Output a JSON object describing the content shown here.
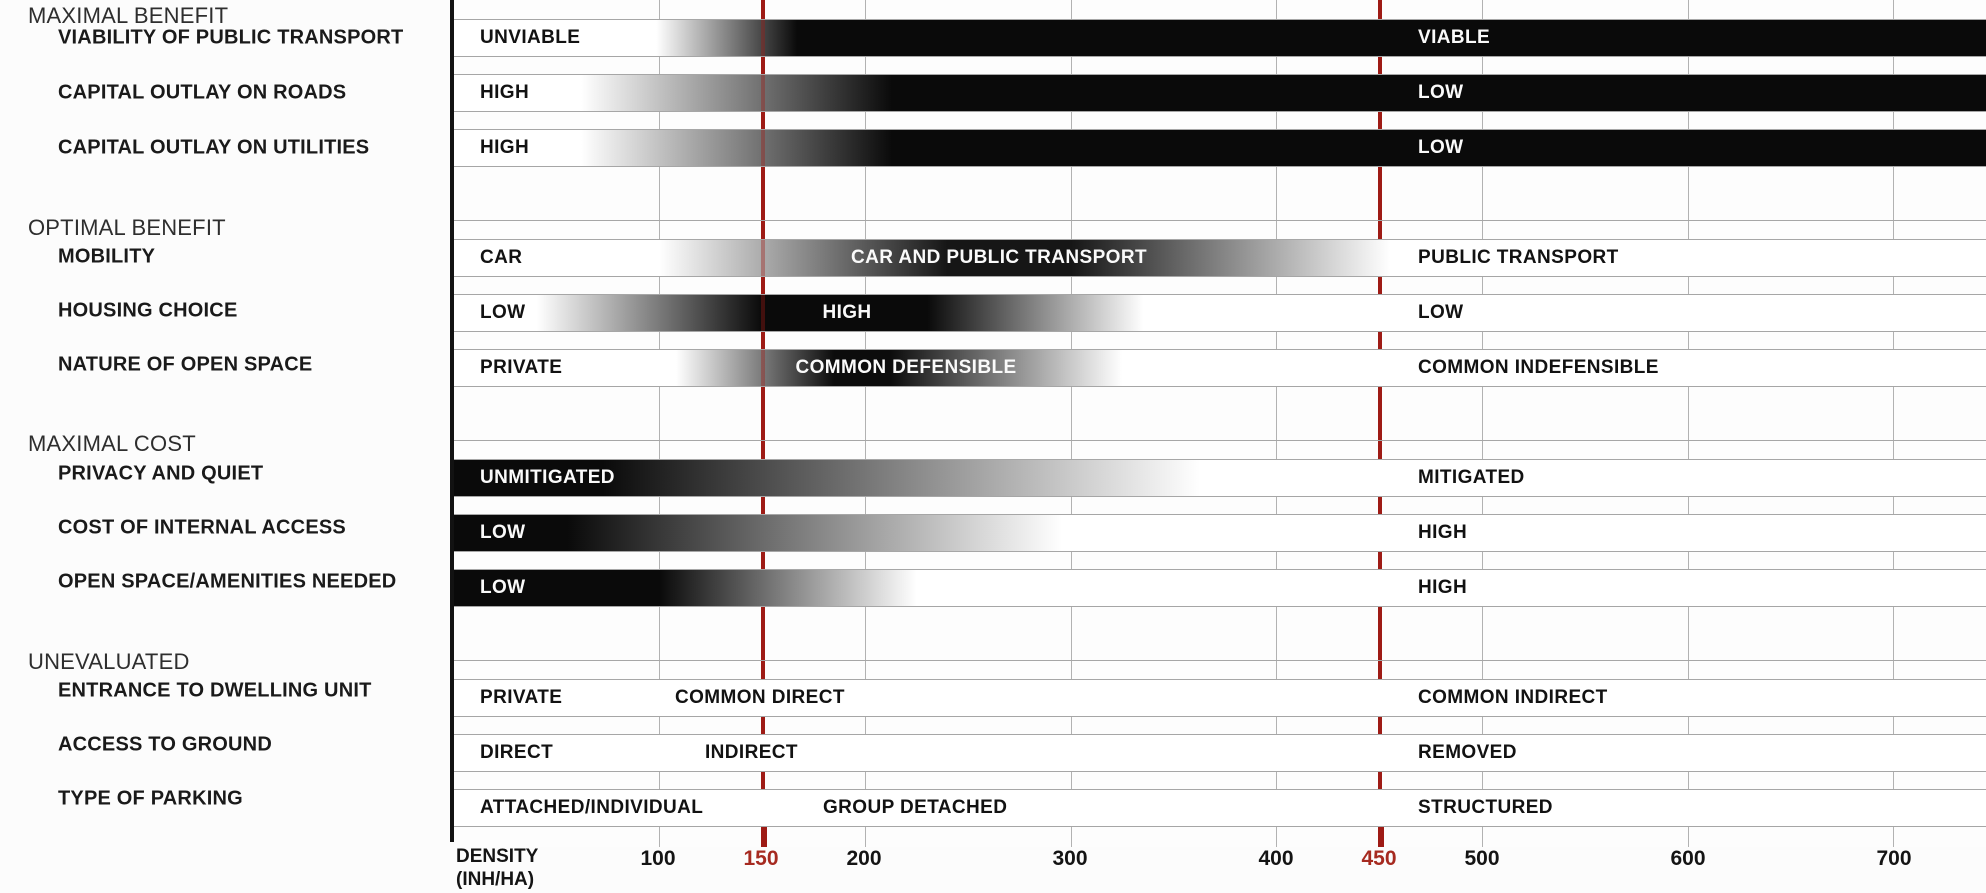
{
  "accent": {
    "red_line": "#9e1b15",
    "red_text": "#a62a20",
    "gridline": "#b2b2b2",
    "bar_black": "#0a0a0a"
  },
  "axis": {
    "label_line1": "DENSITY",
    "label_line2": "(INH/HA)",
    "ticks": [
      {
        "value": "100",
        "red": false
      },
      {
        "value": "150",
        "red": true
      },
      {
        "value": "200",
        "red": false
      },
      {
        "value": "300",
        "red": false
      },
      {
        "value": "400",
        "red": false
      },
      {
        "value": "450",
        "red": true
      },
      {
        "value": "500",
        "red": false
      },
      {
        "value": "600",
        "red": false
      },
      {
        "value": "700",
        "red": false
      }
    ]
  },
  "sections": [
    {
      "title": "MAXIMAL BENEFIT",
      "rows": [
        {
          "label": "VIABILITY OF PUBLIC TRANSPORT",
          "bands": {
            "left": "UNVIABLE",
            "right": "VIABLE"
          }
        },
        {
          "label": "CAPITAL OUTLAY ON ROADS",
          "bands": {
            "left": "HIGH",
            "right": "LOW"
          }
        },
        {
          "label": "CAPITAL OUTLAY ON UTILITIES",
          "bands": {
            "left": "HIGH",
            "right": "LOW"
          }
        }
      ]
    },
    {
      "title": "OPTIMAL BENEFIT",
      "rows": [
        {
          "label": "MOBILITY",
          "bands": {
            "left": "CAR",
            "mid": "CAR AND PUBLIC TRANSPORT",
            "right": "PUBLIC TRANSPORT"
          }
        },
        {
          "label": "HOUSING CHOICE",
          "bands": {
            "left": "LOW",
            "mid": "HIGH",
            "right": "LOW"
          }
        },
        {
          "label": "NATURE OF OPEN SPACE",
          "bands": {
            "left": "PRIVATE",
            "mid": "COMMON DEFENSIBLE",
            "right": "COMMON INDEFENSIBLE"
          }
        }
      ]
    },
    {
      "title": "MAXIMAL COST",
      "rows": [
        {
          "label": "PRIVACY AND QUIET",
          "bands": {
            "left": "UNMITIGATED",
            "right": "MITIGATED"
          }
        },
        {
          "label": "COST OF INTERNAL ACCESS",
          "bands": {
            "left": "LOW",
            "right": "HIGH"
          }
        },
        {
          "label": "OPEN SPACE/AMENITIES NEEDED",
          "bands": {
            "left": "LOW",
            "right": "HIGH"
          }
        }
      ]
    },
    {
      "title": "UNEVALUATED",
      "rows": [
        {
          "label": "ENTRANCE TO DWELLING UNIT",
          "bands": {
            "left": "PRIVATE",
            "mid": "COMMON DIRECT",
            "right": "COMMON INDIRECT"
          }
        },
        {
          "label": "ACCESS TO GROUND",
          "bands": {
            "left": "DIRECT",
            "mid": "INDIRECT",
            "right": "REMOVED"
          }
        },
        {
          "label": "TYPE OF PARKING",
          "bands": {
            "left": "ATTACHED/INDIVIDUAL",
            "mid": "GROUP DETACHED",
            "right": "STRUCTURED"
          }
        }
      ]
    }
  ],
  "chart_data": {
    "type": "heatmap",
    "title": "Density trade-off diagram: benefits and costs vs residential density",
    "xlabel": "DENSITY (INH/HA)",
    "x_range": [
      0,
      745
    ],
    "x_ticks": [
      100,
      150,
      200,
      300,
      400,
      450,
      500,
      600,
      700
    ],
    "highlight_x": [
      150,
      450
    ],
    "grid": true,
    "rows": [
      {
        "name": "VIABILITY OF PUBLIC TRANSPORT",
        "intensity_stops": [
          [
            0,
            0
          ],
          [
            98,
            0
          ],
          [
            167,
            1
          ],
          [
            745,
            1
          ]
        ],
        "labels": [
          {
            "text": "UNVIABLE",
            "x": 15
          },
          {
            "text": "VIABLE",
            "x": 468
          }
        ]
      },
      {
        "name": "CAPITAL OUTLAY ON ROADS",
        "intensity_stops": [
          [
            0,
            0
          ],
          [
            62,
            0
          ],
          [
            213,
            1
          ],
          [
            745,
            1
          ]
        ],
        "labels": [
          {
            "text": "HIGH",
            "x": 15
          },
          {
            "text": "LOW",
            "x": 468
          }
        ]
      },
      {
        "name": "CAPITAL OUTLAY ON UTILITIES",
        "intensity_stops": [
          [
            0,
            0
          ],
          [
            62,
            0
          ],
          [
            213,
            1
          ],
          [
            745,
            1
          ]
        ],
        "labels": [
          {
            "text": "HIGH",
            "x": 15
          },
          {
            "text": "LOW",
            "x": 468
          }
        ]
      },
      {
        "name": "MOBILITY",
        "intensity_stops": [
          [
            0,
            0
          ],
          [
            100,
            0
          ],
          [
            240,
            0.95
          ],
          [
            300,
            0.95
          ],
          [
            455,
            0
          ],
          [
            745,
            0
          ]
        ],
        "labels": [
          {
            "text": "CAR",
            "x": 15
          },
          {
            "text": "CAR AND PUBLIC TRANSPORT",
            "x": 265
          },
          {
            "text": "PUBLIC TRANSPORT",
            "x": 468
          }
        ]
      },
      {
        "name": "HOUSING CHOICE",
        "intensity_stops": [
          [
            0,
            0
          ],
          [
            40,
            0
          ],
          [
            150,
            1
          ],
          [
            230,
            1
          ],
          [
            335,
            0
          ],
          [
            745,
            0
          ]
        ],
        "labels": [
          {
            "text": "LOW",
            "x": 15
          },
          {
            "text": "HIGH",
            "x": 191
          },
          {
            "text": "LOW",
            "x": 468
          }
        ]
      },
      {
        "name": "NATURE OF OPEN SPACE",
        "intensity_stops": [
          [
            0,
            0
          ],
          [
            108,
            0
          ],
          [
            185,
            1
          ],
          [
            212,
            1
          ],
          [
            325,
            0
          ],
          [
            745,
            0
          ]
        ],
        "labels": [
          {
            "text": "PRIVATE",
            "x": 15
          },
          {
            "text": "COMMON DEFENSIBLE",
            "x": 220
          },
          {
            "text": "COMMON INDEFENSIBLE",
            "x": 468
          }
        ]
      },
      {
        "name": "PRIVACY AND QUIET",
        "intensity_stops": [
          [
            0,
            1
          ],
          [
            72,
            1
          ],
          [
            363,
            0
          ],
          [
            745,
            0
          ]
        ],
        "labels": [
          {
            "text": "UNMITIGATED",
            "x": 15
          },
          {
            "text": "MITIGATED",
            "x": 468
          }
        ]
      },
      {
        "name": "COST OF INTERNAL ACCESS",
        "intensity_stops": [
          [
            0,
            1
          ],
          [
            55,
            1
          ],
          [
            296,
            0
          ],
          [
            745,
            0
          ]
        ],
        "labels": [
          {
            "text": "LOW",
            "x": 15
          },
          {
            "text": "HIGH",
            "x": 470
          }
        ]
      },
      {
        "name": "OPEN SPACE/AMENITIES NEEDED",
        "intensity_stops": [
          [
            0,
            1
          ],
          [
            100,
            1
          ],
          [
            225,
            0
          ],
          [
            745,
            0
          ]
        ],
        "labels": [
          {
            "text": "LOW",
            "x": 15
          },
          {
            "text": "HIGH",
            "x": 470
          }
        ]
      },
      {
        "name": "ENTRANCE TO DWELLING UNIT",
        "intensity_stops": [
          [
            0,
            0
          ],
          [
            745,
            0
          ]
        ],
        "labels": [
          {
            "text": "PRIVATE",
            "x": 15
          },
          {
            "text": "COMMON DIRECT",
            "x": 107
          },
          {
            "text": "COMMON INDIRECT",
            "x": 468
          }
        ]
      },
      {
        "name": "ACCESS TO GROUND",
        "intensity_stops": [
          [
            0,
            0
          ],
          [
            745,
            0
          ]
        ],
        "labels": [
          {
            "text": "DIRECT",
            "x": 15
          },
          {
            "text": "INDIRECT",
            "x": 122
          },
          {
            "text": "REMOVED",
            "x": 470
          }
        ]
      },
      {
        "name": "TYPE OF PARKING",
        "intensity_stops": [
          [
            0,
            0
          ],
          [
            745,
            0
          ]
        ],
        "labels": [
          {
            "text": "ATTACHED/INDIVIDUAL",
            "x": 10
          },
          {
            "text": "GROUP DETACHED",
            "x": 179
          },
          {
            "text": "STRUCTURED",
            "x": 468
          }
        ]
      }
    ]
  }
}
